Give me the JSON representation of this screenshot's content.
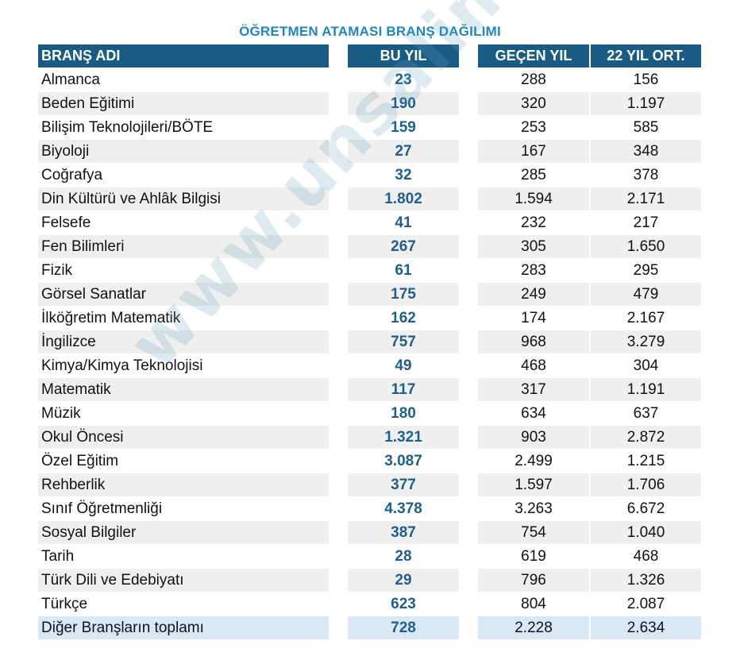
{
  "title": "ÖĞRETMEN ATAMASI BRANŞ DAĞILIMI",
  "watermark": "www.unsalim.com",
  "colors": {
    "header_bg": "#1a5b84",
    "title": "#1e86c2",
    "bu_yil_text": "#1f5f8a",
    "zebra": "#efefef",
    "last_row": "#d9e8f5"
  },
  "columns": [
    "BRANŞ ADI",
    "BU YIL",
    "GEÇEN YIL",
    "22 YIL ORT."
  ],
  "rows": [
    [
      "Almanca",
      "23",
      "288",
      "156"
    ],
    [
      "Beden Eğitimi",
      "190",
      "320",
      "1.197"
    ],
    [
      "Bilişim Teknolojileri/BÖTE",
      "159",
      "253",
      "585"
    ],
    [
      "Biyoloji",
      "27",
      "167",
      "348"
    ],
    [
      "Coğrafya",
      "32",
      "285",
      "378"
    ],
    [
      "Din Kültürü ve Ahlâk Bilgisi",
      "1.802",
      "1.594",
      "2.171"
    ],
    [
      "Felsefe",
      "41",
      "232",
      "217"
    ],
    [
      "Fen Bilimleri",
      "267",
      "305",
      "1.650"
    ],
    [
      "Fizik",
      "61",
      "283",
      "295"
    ],
    [
      "Görsel Sanatlar",
      "175",
      "249",
      "479"
    ],
    [
      "İlköğretim Matematik",
      "162",
      "174",
      "2.167"
    ],
    [
      "İngilizce",
      "757",
      "968",
      "3.279"
    ],
    [
      "Kimya/Kimya Teknolojisi",
      "49",
      "468",
      "304"
    ],
    [
      "Matematik",
      "117",
      "317",
      "1.191"
    ],
    [
      "Müzik",
      "180",
      "634",
      "637"
    ],
    [
      "Okul Öncesi",
      "1.321",
      "903",
      "2.872"
    ],
    [
      "Özel Eğitim",
      "3.087",
      "2.499",
      "1.215"
    ],
    [
      "Rehberlik",
      "377",
      "1.597",
      "1.706"
    ],
    [
      "Sınıf Öğretmenliği",
      "4.378",
      "3.263",
      "6.672"
    ],
    [
      "Sosyal Bilgiler",
      "387",
      "754",
      "1.040"
    ],
    [
      "Tarih",
      "28",
      "619",
      "468"
    ],
    [
      "Türk Dili ve Edebiyatı",
      "29",
      "796",
      "1.326"
    ],
    [
      "Türkçe",
      "623",
      "804",
      "2.087"
    ],
    [
      "Diğer Branşların toplamı",
      "728",
      "2.228",
      "2.634"
    ]
  ]
}
